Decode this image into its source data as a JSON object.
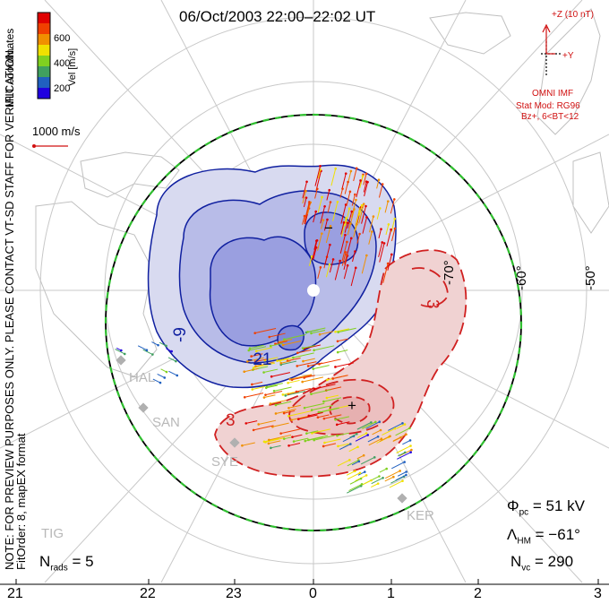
{
  "header": {
    "title": "06/Oct/2003 22:00–22:02 UT",
    "coordinates": "MLT coordinates",
    "note": "NOTE: FOR PREVIEW PURPOSES ONLY. PLEASE CONTACT VT-SD STAFF FOR VERIFICATION.",
    "fit": "FitOrder: 8, mapEX format"
  },
  "colorbar": {
    "label": "Vel [m/s]",
    "ticks": [
      "600",
      "400",
      "200"
    ],
    "colors": [
      "#2000e0",
      "#2060c0",
      "#40a060",
      "#80d020",
      "#f0e000",
      "#f09000",
      "#f04000",
      "#e00000"
    ]
  },
  "scale": {
    "label": "1000 m/s"
  },
  "imf": {
    "z_label": "+Z (10 nT)",
    "y_label": "+Y",
    "source": "OMNI IMF",
    "model_line1": "Stat Mod: RG96",
    "model_line2": "Bz+, 6<BT<12"
  },
  "latitudes": [
    "-70°",
    "-60°",
    "-50°"
  ],
  "potential_labels": [
    "-9",
    "-21",
    "3",
    "−",
    "+"
  ],
  "stations": [
    "HAL",
    "SAN",
    "SYE",
    "KER",
    "TIG"
  ],
  "stats": {
    "nrads_sym": "N",
    "nrads_sub": "rads",
    "nrads_val": "= 5",
    "phi_sym": "Φ",
    "phi_sub": "pc",
    "phi_val": "= 51 kV",
    "lam_sym": "Λ",
    "lam_sub": "HM",
    "lam_val": "= −61°",
    "nvc_sym": "N",
    "nvc_sub": "vc",
    "nvc_val": "= 290"
  },
  "mlt_axis": [
    "21",
    "22",
    "23",
    "0",
    "1",
    "2",
    "3"
  ],
  "colors": {
    "negative_cell": "#1020a0",
    "positive_cell": "#d02020",
    "boundary": "#30c030"
  }
}
